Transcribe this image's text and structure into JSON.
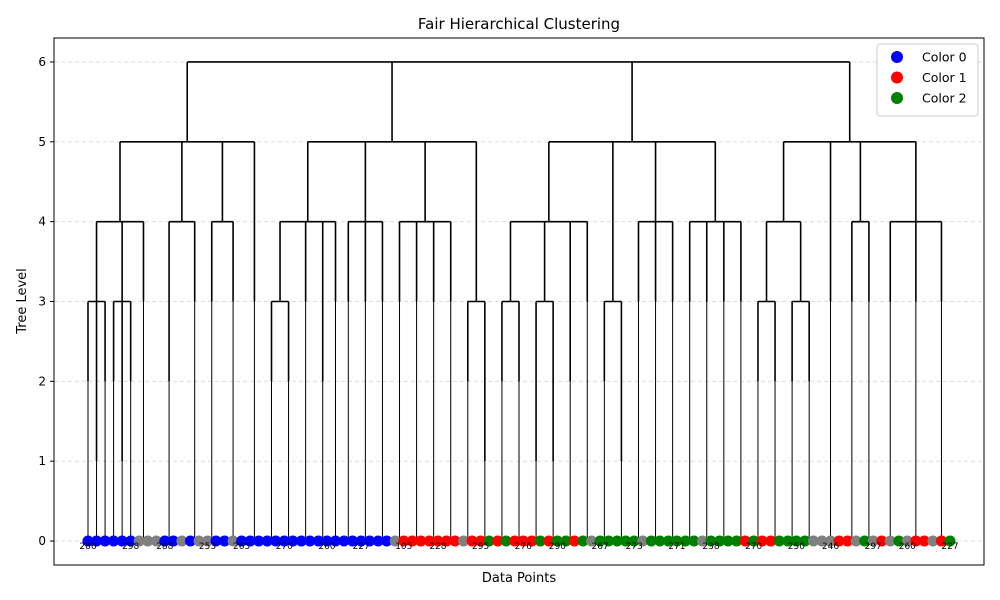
{
  "chart_data": {
    "type": "dendrogram",
    "title": "Fair Hierarchical Clustering",
    "xlabel": "Data Points",
    "ylabel": "Tree Level",
    "ylim": [
      -0.3,
      6.3
    ],
    "yticks": [
      0,
      1,
      2,
      3,
      4,
      5,
      6
    ],
    "grid": "horizontal dashed",
    "legend_placement": "top-right",
    "legend": [
      {
        "label": "Color 0",
        "color": "#0000ff"
      },
      {
        "label": "Color 1",
        "color": "#ff0000"
      },
      {
        "label": "Color 2",
        "color": "#008000"
      }
    ],
    "unassigned_color": "#808080",
    "leaf_labels": [
      "286",
      "298",
      "288",
      "253",
      "265",
      "270",
      "260",
      "227",
      "105",
      "228",
      "295",
      "276",
      "290",
      "267",
      "273",
      "271",
      "238",
      "270",
      "250",
      "246",
      "297",
      "260",
      "227"
    ],
    "tree": {
      "level": 6,
      "children": [
        {
          "level": 5,
          "children": [
            {
              "level": 4,
              "children": [
                {
                  "level": 3,
                  "children": [
                    {
                      "level": 2,
                      "colors": [
                        0
                      ]
                    },
                    {
                      "level": 1,
                      "colors": [
                        0
                      ]
                    },
                    {
                      "level": 2,
                      "colors": [
                        0
                      ]
                    }
                  ]
                },
                {
                  "level": 3,
                  "children": [
                    {
                      "level": 2,
                      "colors": [
                        0
                      ]
                    },
                    {
                      "level": 1,
                      "colors": [
                        0
                      ]
                    },
                    {
                      "level": 2,
                      "colors": [
                        0
                      ]
                    }
                  ]
                },
                {
                  "level": 3,
                  "colors": [
                    -1,
                    -1
                  ]
                }
              ]
            },
            {
              "level": 4,
              "children": [
                {
                  "level": 3,
                  "children": [
                    {
                      "level": 2,
                      "colors": [
                        -1,
                        0,
                        0,
                        -1
                      ]
                    }
                  ]
                },
                {
                  "level": 3,
                  "colors": [
                    0,
                    -1
                  ]
                }
              ]
            },
            {
              "level": 4,
              "children": [
                {
                  "level": 3,
                  "colors": [
                    -1,
                    0
                  ]
                },
                {
                  "level": 3,
                  "colors": [
                    0,
                    -1,
                    0
                  ]
                }
              ]
            },
            {
              "level": 4,
              "children": [
                {
                  "level": 3,
                  "colors": [
                    0,
                    0
                  ]
                }
              ]
            }
          ]
        },
        {
          "level": 5,
          "children": [
            {
              "level": 4,
              "children": [
                {
                  "level": 3,
                  "children": [
                    {
                      "level": 2,
                      "colors": [
                        0,
                        0
                      ]
                    },
                    {
                      "level": 2,
                      "colors": [
                        0,
                        0
                      ]
                    }
                  ]
                },
                {
                  "level": 3,
                  "colors": [
                    0,
                    0
                  ]
                },
                {
                  "level": 3,
                  "children": [
                    {
                      "level": 2,
                      "colors": [
                        0,
                        0
                      ]
                    }
                  ]
                },
                {
                  "level": 3,
                  "colors": [
                    0
                  ]
                }
              ]
            },
            {
              "level": 4,
              "children": [
                {
                  "level": 3,
                  "colors": [
                    0,
                    0
                  ]
                },
                {
                  "level": 3,
                  "colors": [
                    0,
                    0
                  ]
                },
                {
                  "level": 3,
                  "colors": [
                    0,
                    0
                  ]
                }
              ]
            },
            {
              "level": 4,
              "children": [
                {
                  "level": 3,
                  "colors": [
                    -1,
                    1
                  ]
                },
                {
                  "level": 3,
                  "colors": [
                    1,
                    1
                  ]
                },
                {
                  "level": 3,
                  "colors": [
                    1,
                    1
                  ]
                },
                {
                  "level": 3,
                  "colors": [
                    1,
                    1
                  ]
                }
              ]
            },
            {
              "level": 4,
              "children": [
                {
                  "level": 3,
                  "children": [
                    {
                      "level": 2,
                      "colors": [
                        -1,
                        1
                      ]
                    },
                    {
                      "level": 1,
                      "colors": [
                        1,
                        2
                      ]
                    }
                  ]
                }
              ]
            }
          ]
        },
        {
          "level": 5,
          "children": [
            {
              "level": 4,
              "children": [
                {
                  "level": 3,
                  "children": [
                    {
                      "level": 2,
                      "colors": [
                        1,
                        2
                      ]
                    },
                    {
                      "level": 2,
                      "colors": [
                        1,
                        1
                      ]
                    }
                  ]
                },
                {
                  "level": 3,
                  "children": [
                    {
                      "level": 1,
                      "colors": [
                        1,
                        2
                      ]
                    },
                    {
                      "level": 1,
                      "colors": [
                        1,
                        2
                      ]
                    }
                  ]
                },
                {
                  "level": 3,
                  "children": [
                    {
                      "level": 2,
                      "colors": [
                        2,
                        1
                      ]
                    }
                  ]
                },
                {
                  "level": 3,
                  "colors": [
                    2,
                    -1
                  ]
                }
              ]
            },
            {
              "level": 4,
              "children": [
                {
                  "level": 3,
                  "children": [
                    {
                      "level": 2,
                      "colors": [
                        2,
                        2
                      ]
                    },
                    {
                      "level": 1,
                      "colors": [
                        2,
                        2
                      ]
                    }
                  ]
                }
              ]
            },
            {
              "level": 4,
              "children": [
                {
                  "level": 3,
                  "colors": [
                    2,
                    -1
                  ]
                },
                {
                  "level": 3,
                  "colors": [
                    2,
                    2
                  ]
                },
                {
                  "level": 3,
                  "colors": [
                    2,
                    2
                  ]
                }
              ]
            },
            {
              "level": 4,
              "children": [
                {
                  "level": 3,
                  "colors": [
                    2,
                    2
                  ]
                },
                {
                  "level": 3,
                  "colors": [
                    -1,
                    2
                  ]
                },
                {
                  "level": 3,
                  "colors": [
                    2,
                    2
                  ]
                },
                {
                  "level": 3,
                  "colors": [
                    2,
                    1
                  ]
                }
              ]
            }
          ]
        },
        {
          "level": 5,
          "children": [
            {
              "level": 4,
              "children": [
                {
                  "level": 3,
                  "children": [
                    {
                      "level": 2,
                      "colors": [
                        2,
                        1
                      ]
                    },
                    {
                      "level": 2,
                      "colors": [
                        1,
                        2
                      ]
                    }
                  ]
                },
                {
                  "level": 3,
                  "children": [
                    {
                      "level": 2,
                      "colors": [
                        2,
                        2
                      ]
                    },
                    {
                      "level": 2,
                      "colors": [
                        2,
                        -1
                      ]
                    }
                  ]
                }
              ]
            },
            {
              "level": 4,
              "children": [
                {
                  "level": 3,
                  "colors": [
                    -1,
                    -1,
                    1
                  ]
                }
              ]
            },
            {
              "level": 4,
              "children": [
                {
                  "level": 3,
                  "colors": [
                    1,
                    -1
                  ]
                },
                {
                  "level": 3,
                  "colors": [
                    2,
                    -1
                  ]
                }
              ]
            },
            {
              "level": 4,
              "children": [
                {
                  "level": 3,
                  "colors": [
                    1,
                    -1,
                    2
                  ]
                },
                {
                  "level": 3,
                  "colors": [
                    -1,
                    1,
                    1
                  ]
                },
                {
                  "level": 3,
                  "colors": [
                    -1,
                    1,
                    2
                  ]
                }
              ]
            }
          ]
        }
      ]
    }
  }
}
